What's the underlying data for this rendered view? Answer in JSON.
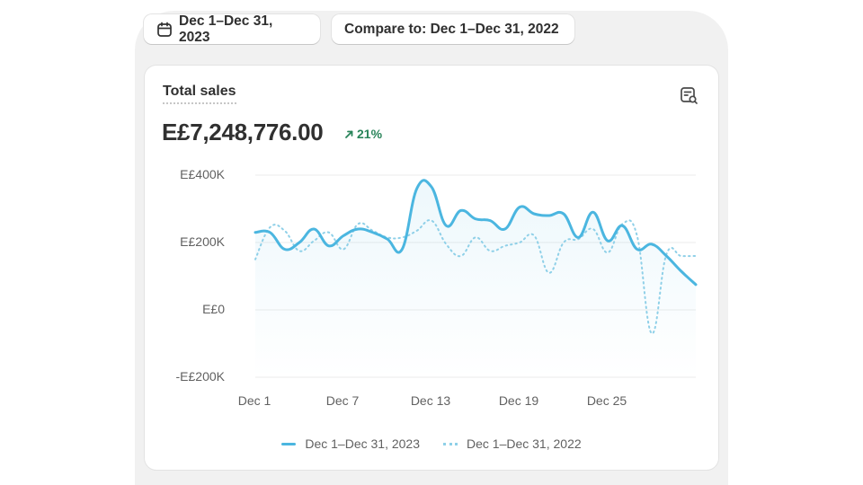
{
  "filters": {
    "date_range": "Dec 1–Dec 31, 2023",
    "compare": "Compare to: Dec 1–Dec 31, 2022"
  },
  "card": {
    "title": "Total sales",
    "total": "E£7,248,776.00",
    "trend": "21%",
    "icon": "chart-search-icon"
  },
  "colors": {
    "current": "#4bb6e0",
    "previous": "#8fd0e8",
    "trend": "#29845a"
  },
  "chart_data": {
    "type": "line",
    "x": [
      1,
      2,
      3,
      4,
      5,
      6,
      7,
      8,
      9,
      10,
      11,
      12,
      13,
      14,
      15,
      16,
      17,
      18,
      19,
      20,
      21,
      22,
      23,
      24,
      25,
      26,
      27,
      28,
      29,
      30,
      31
    ],
    "x_tick_labels": [
      "Dec 1",
      "Dec 7",
      "Dec 13",
      "Dec 19",
      "Dec 25"
    ],
    "x_tick_days": [
      1,
      7,
      13,
      19,
      25
    ],
    "y_tick_labels": [
      "E£400K",
      "E£200K",
      "E£0",
      "-E£200K"
    ],
    "y_tick_values": [
      400000,
      200000,
      0,
      -200000
    ],
    "ylim": [
      -200000,
      400000
    ],
    "grid": true,
    "legend_position": "bottom",
    "series": [
      {
        "name": "Dec 1–Dec 31, 2023",
        "style": "solid",
        "values": [
          230000,
          230000,
          180000,
          200000,
          240000,
          190000,
          220000,
          240000,
          230000,
          210000,
          180000,
          360000,
          365000,
          250000,
          295000,
          270000,
          265000,
          240000,
          305000,
          285000,
          280000,
          285000,
          215000,
          290000,
          205000,
          250000,
          180000,
          195000,
          160000,
          115000,
          75000
        ]
      },
      {
        "name": "Dec 1–Dec 31, 2022",
        "style": "dotted",
        "values": [
          150000,
          245000,
          235000,
          175000,
          205000,
          230000,
          180000,
          255000,
          235000,
          215000,
          215000,
          235000,
          265000,
          195000,
          160000,
          215000,
          175000,
          190000,
          200000,
          220000,
          110000,
          200000,
          210000,
          240000,
          170000,
          255000,
          220000,
          -70000,
          165000,
          160000,
          160000
        ]
      }
    ]
  }
}
